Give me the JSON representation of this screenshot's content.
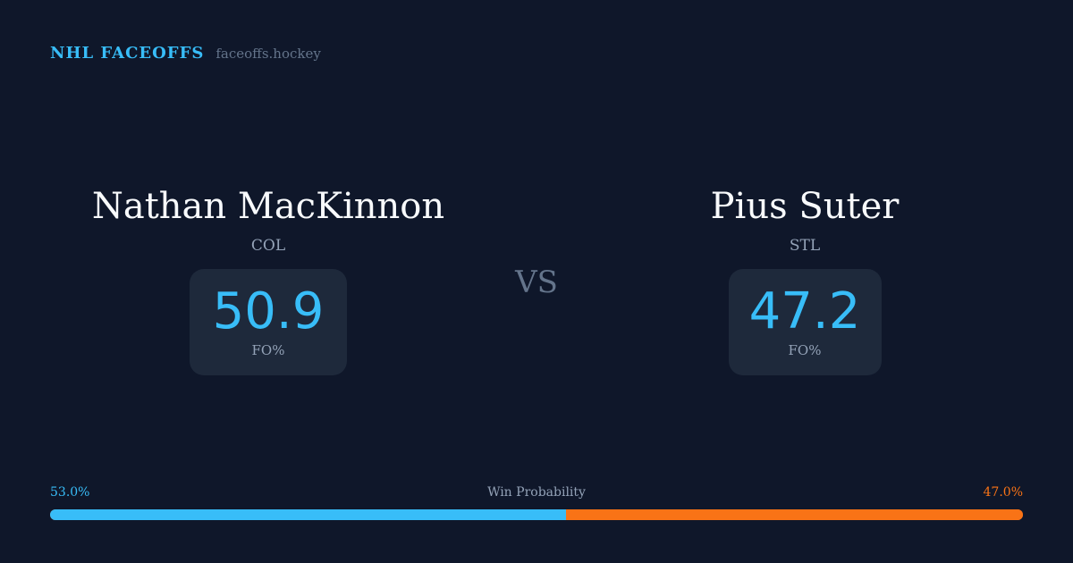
{
  "brand": {
    "title": "NHL FACEOFFS",
    "url": "faceoffs.hockey"
  },
  "players": [
    {
      "name": "Nathan MacKinnon",
      "team": "COL",
      "fo_pct": "50.9",
      "fo_label": "FO%"
    },
    {
      "name": "Pius Suter",
      "team": "STL",
      "fo_pct": "47.2",
      "fo_label": "FO%"
    }
  ],
  "vs": "VS",
  "win_probability": {
    "label": "Win Probability",
    "left": "53.0%",
    "right": "47.0%",
    "left_value": 53.0,
    "colors": {
      "left": "#38bdf8",
      "right": "#f97316"
    }
  }
}
